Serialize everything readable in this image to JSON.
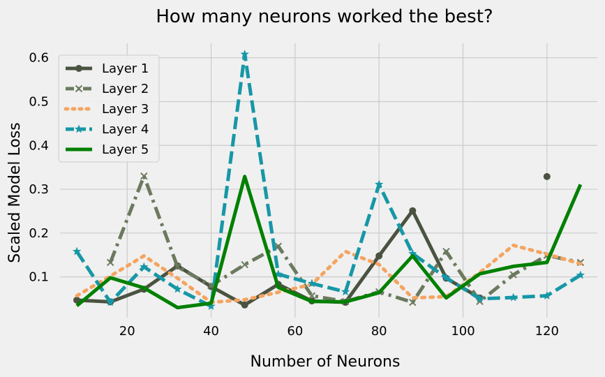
{
  "chart_data": {
    "type": "line",
    "title": "How many neurons worked the best?",
    "xlabel": "Number of Neurons",
    "ylabel": "Scaled Model Loss",
    "xlim": [
      4,
      132
    ],
    "ylim": [
      0.007,
      0.633
    ],
    "xticks": [
      20,
      40,
      60,
      80,
      100,
      120
    ],
    "yticks": [
      0.1,
      0.2,
      0.3,
      0.4,
      0.5,
      0.6
    ],
    "grid": true,
    "legend_position": "top-left",
    "x": [
      8,
      16,
      24,
      32,
      40,
      48,
      56,
      64,
      72,
      80,
      88,
      96,
      104,
      112,
      120,
      128
    ],
    "series": [
      {
        "name": "Layer 1",
        "color": "#4a5340",
        "dash": "solid",
        "marker": "circle",
        "values": [
          0.047,
          0.043,
          0.072,
          0.125,
          0.078,
          0.036,
          0.083,
          0.045,
          0.042,
          0.148,
          0.251,
          0.097,
          0.052,
          null,
          0.329,
          null
        ]
      },
      {
        "name": "Layer 2",
        "color": "#6b7a5e",
        "dash": "dashdot",
        "marker": "x",
        "values": [
          null,
          0.133,
          0.33,
          0.123,
          0.08,
          0.128,
          0.17,
          0.057,
          0.044,
          0.066,
          0.042,
          0.158,
          0.044,
          0.105,
          0.149,
          0.133
        ]
      },
      {
        "name": "Layer 3",
        "color": "#f4a460",
        "dash": "dotted",
        "marker": "none",
        "values": [
          0.057,
          0.102,
          0.148,
          0.097,
          0.042,
          0.048,
          0.065,
          0.083,
          0.158,
          0.128,
          0.052,
          0.055,
          0.11,
          0.172,
          0.152,
          0.13
        ]
      },
      {
        "name": "Layer 4",
        "color": "#1797a6",
        "dash": "dashed",
        "marker": "star",
        "values": [
          0.158,
          0.042,
          0.123,
          0.072,
          0.033,
          0.608,
          0.106,
          0.085,
          0.066,
          0.311,
          0.153,
          0.098,
          0.05,
          0.053,
          0.057,
          0.104
        ]
      },
      {
        "name": "Layer 5",
        "color": "#008000",
        "dash": "solid",
        "marker": "none",
        "values": [
          0.034,
          0.098,
          0.075,
          0.03,
          0.04,
          0.329,
          0.076,
          0.044,
          0.043,
          0.064,
          0.148,
          0.052,
          0.107,
          0.124,
          0.133,
          0.311
        ]
      }
    ]
  }
}
